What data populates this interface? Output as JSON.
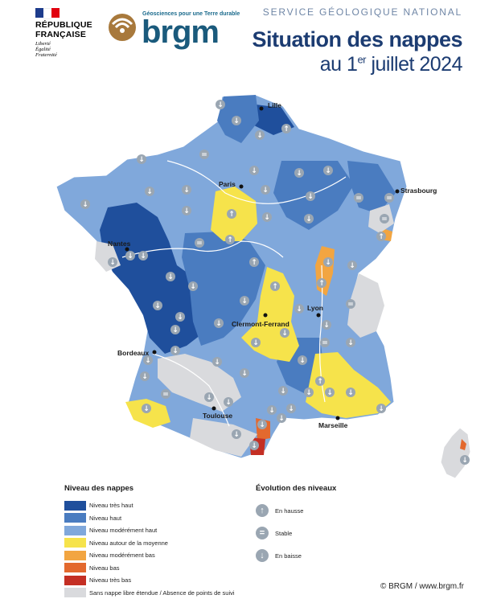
{
  "header": {
    "republic_line1": "RÉPUBLIQUE",
    "republic_line2": "FRANÇAISE",
    "motto_1": "Liberté",
    "motto_2": "Égalité",
    "motto_3": "Fraternité",
    "brgm_tagline": "Géosciences pour une Terre durable",
    "brgm_word": "brgm",
    "service": "SERVICE GÉOLOGIQUE NATIONAL",
    "title": "Situation des nappes",
    "subtitle_pre": "au 1",
    "subtitle_sup": "er",
    "subtitle_post": " juillet 2024"
  },
  "colors": {
    "tres_haut": "#1f4f9c",
    "haut": "#4a7cc0",
    "moderement_haut": "#80a8db",
    "moyenne": "#f6e34b",
    "moderement_bas": "#f2a541",
    "bas": "#e3692e",
    "tres_bas": "#c42f24",
    "sans_nappe": "#d9dadd",
    "arrow": "#9aa6b2",
    "title": "#1c3c72"
  },
  "cities": [
    {
      "name": "Lille"
    },
    {
      "name": "Paris"
    },
    {
      "name": "Strasbourg"
    },
    {
      "name": "Nantes"
    },
    {
      "name": "Lyon"
    },
    {
      "name": "Clermont-Ferrand"
    },
    {
      "name": "Bordeaux"
    },
    {
      "name": "Toulouse"
    },
    {
      "name": "Marseille"
    }
  ],
  "legend_levels": {
    "title": "Niveau des nappes",
    "items": [
      {
        "label": "Niveau très haut",
        "color": "#1f4f9c"
      },
      {
        "label": "Niveau haut",
        "color": "#4a7cc0"
      },
      {
        "label": "Niveau modérément haut",
        "color": "#80a8db"
      },
      {
        "label": "Niveau autour de la moyenne",
        "color": "#f6e34b"
      },
      {
        "label": "Niveau modérément bas",
        "color": "#f2a541"
      },
      {
        "label": "Niveau bas",
        "color": "#e3692e"
      },
      {
        "label": "Niveau très bas",
        "color": "#c42f24"
      },
      {
        "label": "Sans nappe libre étendue / Absence de points de suivi",
        "color": "#d9dadd"
      }
    ]
  },
  "legend_evolution": {
    "title": "Évolution des niveaux",
    "items": [
      {
        "label": "En hausse",
        "icon": "arrow-up-icon",
        "glyph": "↑"
      },
      {
        "label": "Stable",
        "icon": "equals-icon",
        "glyph": "="
      },
      {
        "label": "En baisse",
        "icon": "arrow-down-icon",
        "glyph": "↓"
      }
    ]
  },
  "copyright": "© BRGM / www.brgm.fr"
}
